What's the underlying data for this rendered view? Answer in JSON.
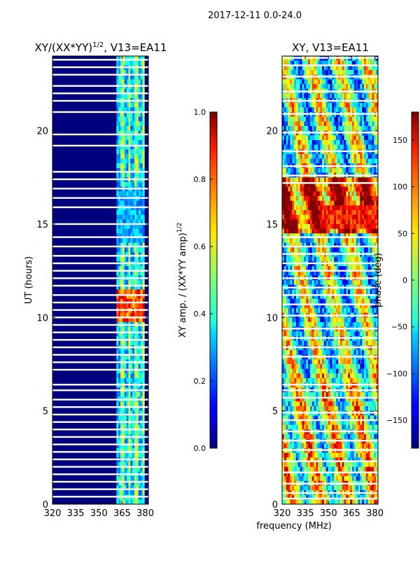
{
  "suptitle": "2017-12-11 0.0-24.0",
  "shared_xlabel": "frequency (MHz)",
  "chart_data": [
    {
      "type": "heatmap",
      "title_main": "XY/(XX*YY)",
      "title_sup": "1/2",
      "title_rest": ", V13=EA11",
      "ylabel": "UT (hours)",
      "xlim": [
        320,
        382
      ],
      "ylim": [
        0,
        24
      ],
      "x_ticks": [
        320,
        335,
        350,
        365,
        380
      ],
      "y_ticks": [
        0,
        5,
        10,
        15,
        20
      ],
      "colorbar": {
        "label_main": "XY amp. / (XX*YY amp)",
        "label_sup": "1/2",
        "range": [
          0.0,
          1.0
        ],
        "ticks": [
          "0.0",
          "0.2",
          "0.4",
          "0.6",
          "0.8",
          "1.0"
        ],
        "tick_values": [
          0.0,
          0.2,
          0.4,
          0.6,
          0.8,
          1.0
        ]
      },
      "signal_band_mhz": [
        361,
        380
      ],
      "flagged_rows_hours": [
        23.8,
        23.4,
        23.0,
        22.4,
        22.0,
        21.6,
        21.0,
        19.8,
        19.2,
        17.8,
        17.4,
        16.9,
        16.4,
        15.9,
        15.0,
        14.3,
        13.8,
        13.3,
        12.9,
        12.5,
        12.1,
        11.7,
        11.2,
        10.8,
        10.4,
        10.0,
        9.6,
        9.2,
        8.8,
        8.4,
        8.0,
        7.6,
        7.2,
        6.4,
        6.1,
        5.6,
        5.2,
        4.8,
        4.4,
        4.0,
        3.6,
        3.2,
        2.8,
        2.4,
        2.0,
        1.6,
        1.2,
        0.8,
        0.4
      ]
    },
    {
      "type": "heatmap",
      "title": "XY, V13=EA11",
      "xlim": [
        320,
        382
      ],
      "ylim": [
        0,
        24
      ],
      "x_ticks": [
        320,
        335,
        350,
        365,
        380
      ],
      "y_ticks": [
        0,
        5,
        10,
        15,
        20
      ],
      "colorbar": {
        "label": "phase (deg)",
        "range": [
          -180,
          180
        ],
        "ticks": [
          "−150",
          "−100",
          "−50",
          "0",
          "50",
          "100",
          "150"
        ],
        "tick_values": [
          -150,
          -100,
          -50,
          0,
          50,
          100,
          150
        ]
      },
      "flagged_rows_hours": [
        23.9,
        23.5,
        22.9,
        22.1,
        21.6,
        20.9,
        19.9,
        18.9,
        18.1,
        17.6,
        17.2,
        14.3,
        13.8,
        13.4,
        12.9,
        12.5,
        12.1,
        11.6,
        11.2,
        10.7,
        10.1,
        9.4,
        8.9,
        8.4,
        7.9,
        6.4,
        6.1,
        5.7,
        4.9,
        4.5,
        3.9,
        3.4,
        2.9,
        2.3,
        1.7,
        1.1,
        0.6,
        0.3
      ]
    }
  ]
}
